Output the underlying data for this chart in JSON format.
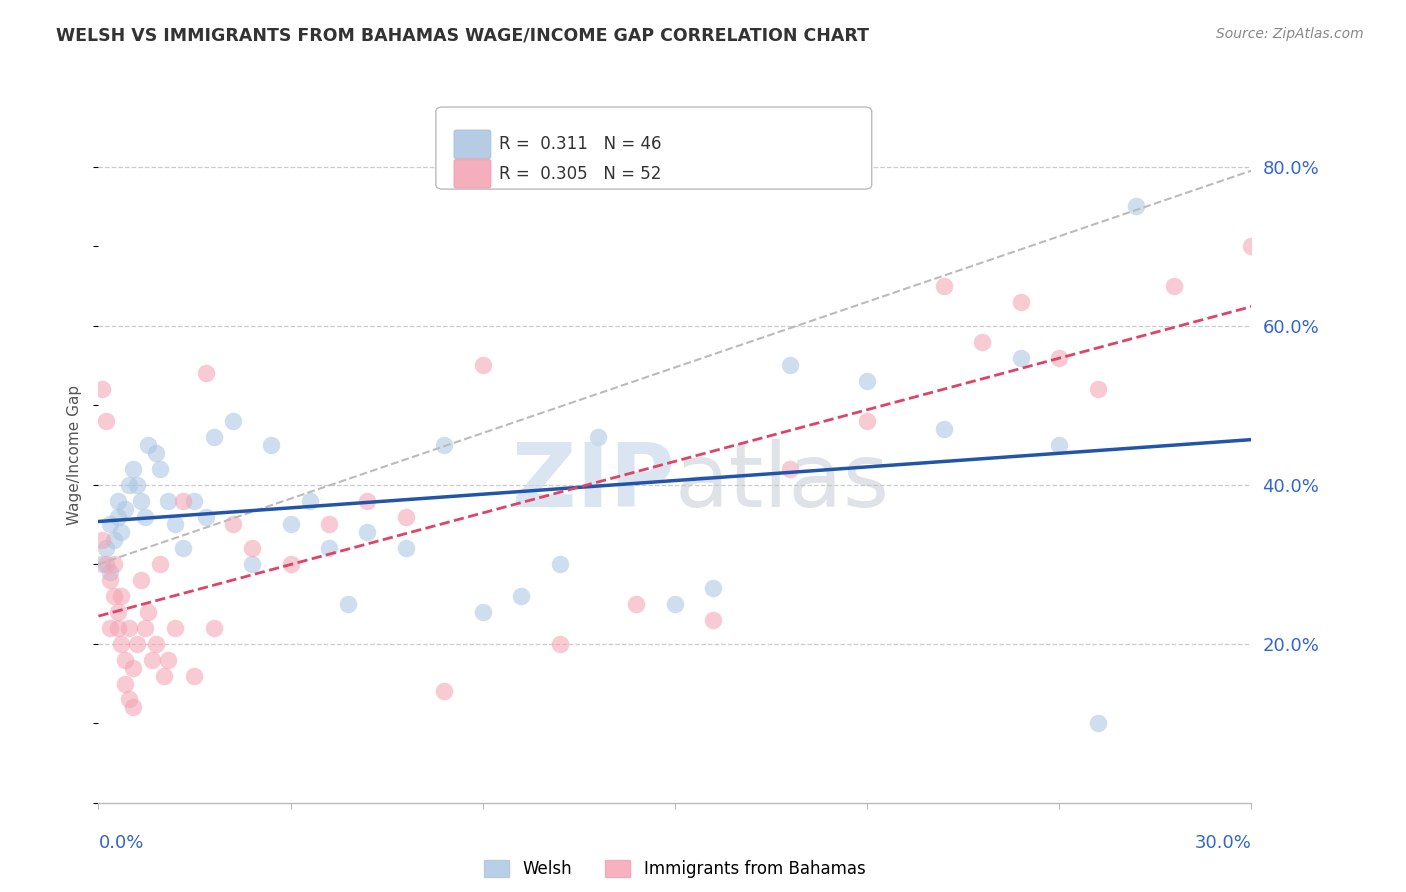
{
  "title": "WELSH VS IMMIGRANTS FROM BAHAMAS WAGE/INCOME GAP CORRELATION CHART",
  "source": "Source: ZipAtlas.com",
  "ylabel": "Wage/Income Gap",
  "y_ticks": [
    0.2,
    0.4,
    0.6,
    0.8
  ],
  "y_tick_labels": [
    "20.0%",
    "40.0%",
    "60.0%",
    "80.0%"
  ],
  "welsh_R": "0.311",
  "welsh_N": "46",
  "bahamas_R": "0.305",
  "bahamas_N": "52",
  "welsh_fill": "#A8C4E0",
  "bahamas_fill": "#F4A0B0",
  "welsh_line_color": "#2255AA",
  "bahamas_line_color": "#DD4466",
  "grey_dash_color": "#BBBBBB",
  "xmin": 0.0,
  "xmax": 0.3,
  "ymin": 0.0,
  "ymax": 0.875,
  "grid_color": "#CCCCCC",
  "bg_color": "#FFFFFF",
  "axis_label_color": "#3366CC",
  "title_color": "#333333",
  "source_color": "#888888",
  "marker_size": 160,
  "marker_alpha": 0.55,
  "line_width": 2.5,
  "welsh_x": [
    0.001,
    0.002,
    0.003,
    0.003,
    0.004,
    0.005,
    0.005,
    0.006,
    0.007,
    0.008,
    0.009,
    0.01,
    0.011,
    0.012,
    0.013,
    0.015,
    0.016,
    0.018,
    0.02,
    0.022,
    0.025,
    0.028,
    0.03,
    0.035,
    0.04,
    0.045,
    0.05,
    0.055,
    0.06,
    0.065,
    0.07,
    0.08,
    0.09,
    0.1,
    0.11,
    0.12,
    0.13,
    0.15,
    0.16,
    0.18,
    0.2,
    0.22,
    0.24,
    0.25,
    0.26,
    0.27
  ],
  "welsh_y": [
    0.3,
    0.32,
    0.29,
    0.35,
    0.33,
    0.38,
    0.36,
    0.34,
    0.37,
    0.4,
    0.42,
    0.4,
    0.38,
    0.36,
    0.45,
    0.44,
    0.42,
    0.38,
    0.35,
    0.32,
    0.38,
    0.36,
    0.46,
    0.48,
    0.3,
    0.45,
    0.35,
    0.38,
    0.32,
    0.25,
    0.34,
    0.32,
    0.45,
    0.24,
    0.26,
    0.3,
    0.46,
    0.25,
    0.27,
    0.55,
    0.53,
    0.47,
    0.56,
    0.45,
    0.1,
    0.75
  ],
  "bahamas_x": [
    0.001,
    0.001,
    0.002,
    0.002,
    0.003,
    0.003,
    0.004,
    0.004,
    0.005,
    0.005,
    0.006,
    0.006,
    0.007,
    0.007,
    0.008,
    0.008,
    0.009,
    0.009,
    0.01,
    0.011,
    0.012,
    0.013,
    0.014,
    0.015,
    0.016,
    0.017,
    0.018,
    0.02,
    0.022,
    0.025,
    0.028,
    0.03,
    0.035,
    0.04,
    0.05,
    0.06,
    0.07,
    0.08,
    0.09,
    0.1,
    0.12,
    0.14,
    0.16,
    0.18,
    0.2,
    0.22,
    0.23,
    0.24,
    0.25,
    0.26,
    0.28,
    0.3
  ],
  "bahamas_y": [
    0.33,
    0.52,
    0.48,
    0.3,
    0.28,
    0.22,
    0.26,
    0.3,
    0.22,
    0.24,
    0.2,
    0.26,
    0.18,
    0.15,
    0.13,
    0.22,
    0.17,
    0.12,
    0.2,
    0.28,
    0.22,
    0.24,
    0.18,
    0.2,
    0.3,
    0.16,
    0.18,
    0.22,
    0.38,
    0.16,
    0.54,
    0.22,
    0.35,
    0.32,
    0.3,
    0.35,
    0.38,
    0.36,
    0.14,
    0.55,
    0.2,
    0.25,
    0.23,
    0.42,
    0.48,
    0.65,
    0.58,
    0.63,
    0.56,
    0.52,
    0.65,
    0.7
  ]
}
